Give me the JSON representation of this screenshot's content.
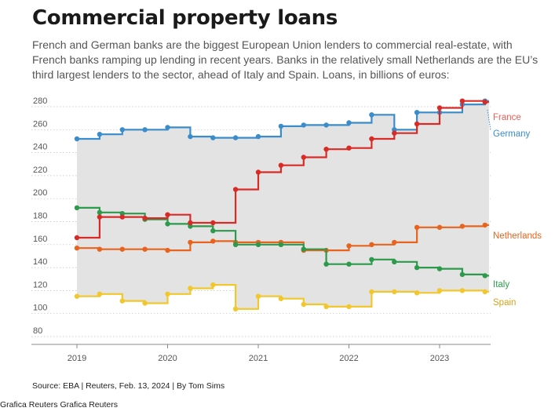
{
  "header": {
    "title": "Commercial property loans",
    "subtitle": "French and German banks are the biggest European Union lenders to commercial real-estate, with French banks ramping up lending in recent years. Banks in the relatively small Netherlands are the EU’s third largest lenders to the sector, ahead of Italy and Spain. Loans, in billions of euros:"
  },
  "footer": {
    "source": "Source: EBA | Reuters, Feb. 13, 2024 | By Tom Sims",
    "credit": "Grafica Reuters Grafica Reuters"
  },
  "chart_data": {
    "type": "line",
    "step": true,
    "title": "Commercial property loans",
    "unit": "billions of euros",
    "ylim": [
      80,
      285
    ],
    "yticks": [
      80,
      100,
      120,
      140,
      160,
      180,
      200,
      220,
      240,
      260,
      280
    ],
    "xlim": [
      2018.6,
      2023.7
    ],
    "xticks": [
      2019,
      2020,
      2021,
      2022,
      2023
    ],
    "x": [
      2019.0,
      2019.25,
      2019.5,
      2019.75,
      2020.0,
      2020.25,
      2020.5,
      2020.75,
      2021.0,
      2021.25,
      2021.5,
      2021.75,
      2022.0,
      2022.25,
      2022.5,
      2022.75,
      2023.0,
      2023.25,
      2023.5
    ],
    "shade_between": [
      "Germany",
      "Spain"
    ],
    "series": [
      {
        "name": "France",
        "color": "#d92b25",
        "values": [
          166,
          184,
          184,
          183,
          186,
          179,
          179,
          208,
          223,
          229,
          236,
          243,
          244,
          252,
          257,
          265,
          279,
          285,
          284
        ]
      },
      {
        "name": "Germany",
        "color": "#3a8ccb",
        "values": [
          252,
          256,
          260,
          260,
          262,
          254,
          253,
          253,
          254,
          263,
          264,
          264,
          266,
          273,
          260,
          275,
          275,
          282,
          285
        ]
      },
      {
        "name": "Netherlands",
        "color": "#e8641e",
        "values": [
          157,
          156,
          156,
          156,
          155,
          162,
          163,
          162,
          162,
          162,
          155,
          155,
          159,
          160,
          162,
          175,
          175,
          176,
          177
        ]
      },
      {
        "name": "Italy",
        "color": "#2b9a4a",
        "values": [
          192,
          188,
          187,
          182,
          178,
          176,
          172,
          160,
          160,
          160,
          156,
          143,
          143,
          147,
          145,
          140,
          139,
          134,
          133
        ]
      },
      {
        "name": "Spain",
        "color": "#f2c72b",
        "values": [
          115,
          117,
          111,
          109,
          117,
          122,
          125,
          104,
          115,
          113,
          108,
          106,
          106,
          119,
          119,
          118,
          120,
          120,
          119
        ]
      }
    ]
  }
}
